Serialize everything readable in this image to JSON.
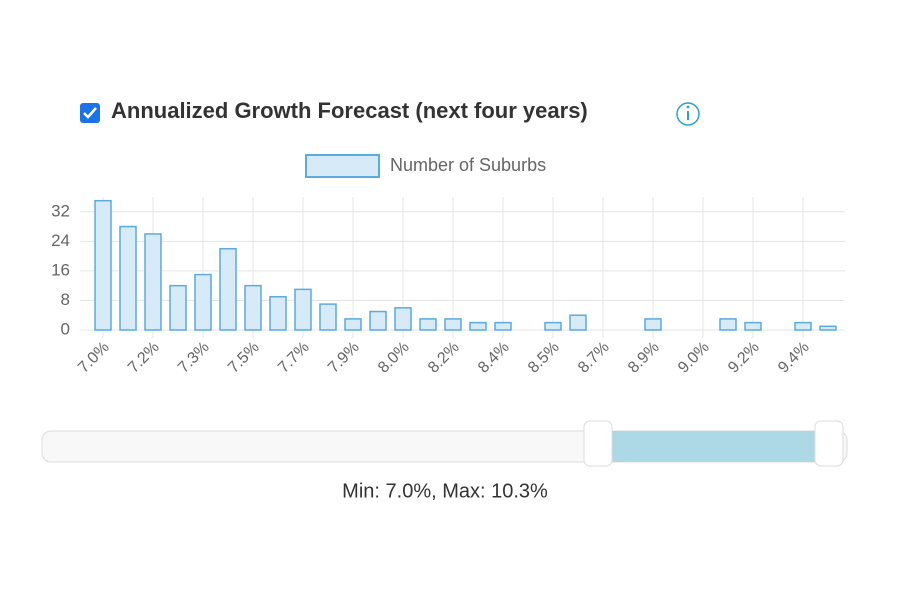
{
  "header": {
    "title": "Annualized Growth Forecast (next four years)"
  },
  "chart_data": {
    "type": "bar",
    "legend": "Number of Suburbs",
    "color": "#5aabe0",
    "fill": "#d6eaf8",
    "categories": [
      "7.0%",
      null,
      "7.2%",
      null,
      "7.3%",
      null,
      "7.5%",
      null,
      "7.7%",
      null,
      "7.9%",
      null,
      "8.0%",
      null,
      "8.2%",
      null,
      "8.4%",
      null,
      "8.5%",
      null,
      "8.7%",
      null,
      "8.9%",
      null,
      "9.0%",
      null,
      "9.2%",
      null,
      "9.4%",
      null
    ],
    "values": [
      35,
      28,
      26,
      12,
      15,
      22,
      12,
      9,
      11,
      7,
      3,
      5,
      6,
      3,
      3,
      2,
      2,
      0,
      2,
      4,
      0,
      0,
      3,
      0,
      0,
      3,
      2,
      0,
      2,
      1
    ],
    "ylim": [
      0,
      36
    ],
    "yticks": [
      0,
      8,
      16,
      24,
      32
    ],
    "grid": true
  },
  "slider": {
    "label": "Min: 7.0%, Max: 10.3%"
  }
}
